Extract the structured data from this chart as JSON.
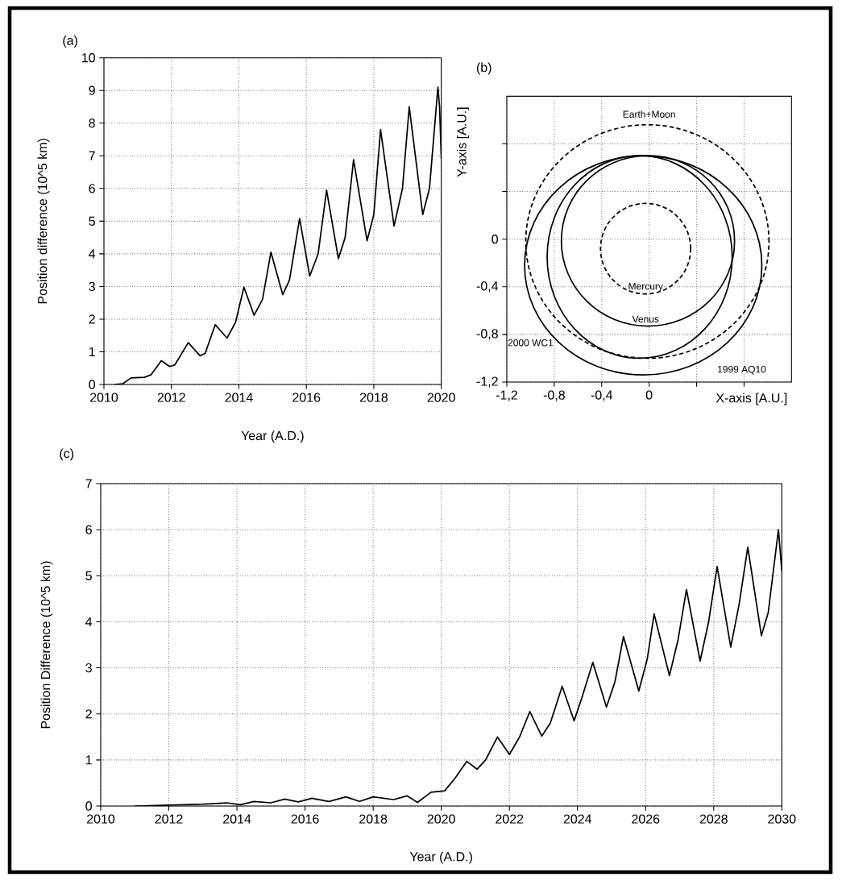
{
  "chart_data": [
    {
      "type": "line",
      "title": "(a)",
      "xlabel": "Year (A.D.)",
      "ylabel": "Position difference (10^5 km)",
      "xlim": [
        2010,
        2020
      ],
      "ylim": [
        0,
        10
      ],
      "xticks": [
        2010,
        2012,
        2014,
        2016,
        2018,
        2020
      ],
      "yticks": [
        0,
        1,
        2,
        3,
        4,
        5,
        6,
        7,
        8,
        9,
        10
      ],
      "grid": true,
      "x": [
        2010.3,
        2010.55,
        2010.8,
        2011.2,
        2011.4,
        2011.7,
        2011.95,
        2012.1,
        2012.5,
        2012.85,
        2013.0,
        2013.3,
        2013.65,
        2013.9,
        2014.15,
        2014.45,
        2014.7,
        2014.95,
        2015.3,
        2015.5,
        2015.8,
        2016.1,
        2016.35,
        2016.6,
        2016.95,
        2017.15,
        2017.4,
        2017.8,
        2018.0,
        2018.2,
        2018.6,
        2018.85,
        2019.05,
        2019.45,
        2019.65,
        2019.9,
        2019.95,
        2020.0
      ],
      "series": [
        {
          "color": "#000000",
          "values": [
            0,
            0.02,
            0.2,
            0.22,
            0.3,
            0.73,
            0.55,
            0.6,
            1.28,
            0.88,
            0.95,
            1.83,
            1.42,
            1.9,
            2.98,
            2.12,
            2.6,
            4.05,
            2.75,
            3.2,
            5.08,
            3.32,
            4.0,
            5.95,
            3.85,
            4.5,
            6.88,
            4.4,
            5.2,
            7.8,
            4.85,
            6.0,
            8.5,
            5.2,
            6.0,
            9.1,
            8.5,
            6.9
          ]
        }
      ]
    },
    {
      "type": "line",
      "title": "(b)",
      "xlabel": "X-axis [A.U.]",
      "ylabel": "Y-axis [A.U.]",
      "xlim": [
        -1.2,
        1.2
      ],
      "ylim": [
        -1.2,
        1.2
      ],
      "xticks": [
        {
          "value": -1.2,
          "label": "-1,2"
        },
        {
          "value": -0.8,
          "label": "-0,8"
        },
        {
          "value": -0.4,
          "label": "-0,4"
        },
        0,
        {
          "value": 0.4,
          "label": null
        },
        {
          "value": 0.8,
          "label": null
        }
      ],
      "yticks": [
        {
          "value": -1.2,
          "label": "-1,2"
        },
        {
          "value": -0.8,
          "label": "-0,8"
        },
        {
          "value": -0.4,
          "label": "-0,4"
        },
        0,
        {
          "value": 0.4,
          "label": null
        },
        {
          "value": 0.8,
          "label": null
        }
      ],
      "grid": true,
      "annotations": [
        "Earth+Moon",
        "Venus",
        "Mercury",
        "1999 AQ10",
        "2000 WC1"
      ]
    },
    {
      "type": "line",
      "title": "(c)",
      "xlabel": "Year (A.D.)",
      "ylabel": "Position Difference (10^5 km)",
      "xlim": [
        2010,
        2030
      ],
      "ylim": [
        0,
        7
      ],
      "xticks": [
        2010,
        2012,
        2014,
        2016,
        2018,
        2020,
        2022,
        2024,
        2026,
        2028,
        2030
      ],
      "yticks": [
        0,
        1,
        2,
        3,
        4,
        5,
        6,
        7
      ],
      "grid": true,
      "x": [
        2011,
        2012,
        2013,
        2013.7,
        2014.1,
        2014.5,
        2015,
        2015.4,
        2015.8,
        2016.2,
        2016.7,
        2017.2,
        2017.6,
        2018,
        2018.6,
        2019,
        2019.3,
        2019.7,
        2020.1,
        2020.4,
        2020.75,
        2021.05,
        2021.3,
        2021.65,
        2022,
        2022.3,
        2022.6,
        2022.95,
        2023.2,
        2023.55,
        2023.9,
        2024.15,
        2024.45,
        2024.85,
        2025.1,
        2025.35,
        2025.8,
        2026.05,
        2026.25,
        2026.7,
        2026.95,
        2027.2,
        2027.6,
        2027.85,
        2028.1,
        2028.5,
        2028.75,
        2029.0,
        2029.4,
        2029.6,
        2029.9,
        2030
      ],
      "series": [
        {
          "color": "#000000",
          "values": [
            0,
            0.02,
            0.04,
            0.07,
            0.03,
            0.1,
            0.07,
            0.15,
            0.09,
            0.17,
            0.1,
            0.2,
            0.1,
            0.2,
            0.14,
            0.22,
            0.08,
            0.3,
            0.33,
            0.6,
            0.97,
            0.8,
            1.0,
            1.5,
            1.12,
            1.5,
            2.05,
            1.52,
            1.8,
            2.6,
            1.85,
            2.4,
            3.12,
            2.15,
            2.7,
            3.68,
            2.5,
            3.2,
            4.17,
            2.83,
            3.6,
            4.7,
            3.15,
            4.0,
            5.2,
            3.45,
            4.4,
            5.62,
            3.7,
            4.2,
            6.0,
            5.1
          ]
        }
      ]
    }
  ]
}
